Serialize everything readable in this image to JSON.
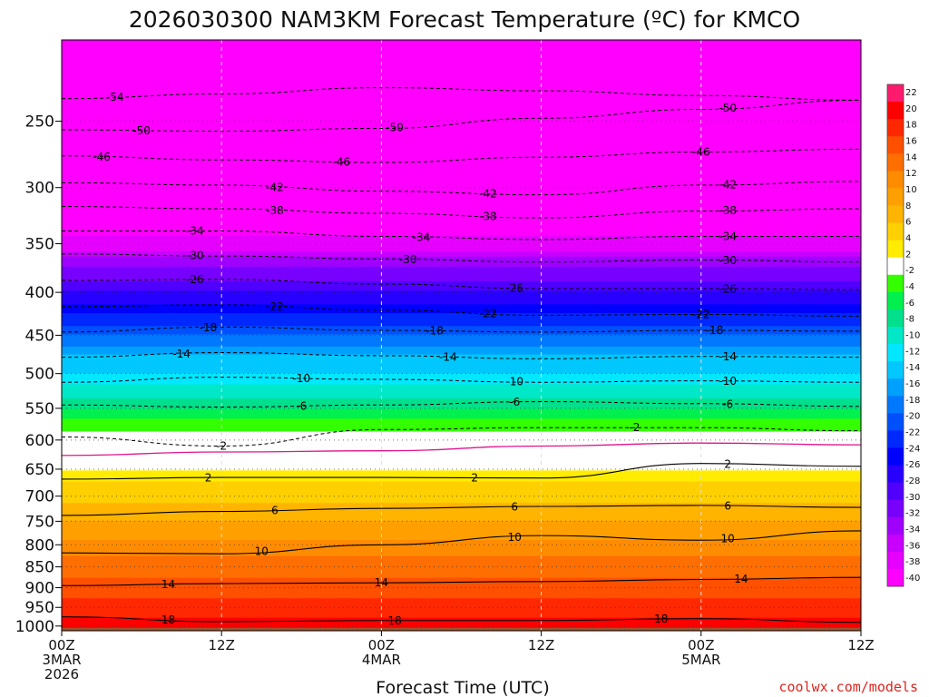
{
  "chart_data": {
    "type": "heatmap",
    "title": "2026030300 NAM3KM Forecast Temperature (ºC) for KMCO",
    "xlabel": "Forecast Time (UTC)",
    "ylabel": "",
    "x_ticks": [
      {
        "hour": 0,
        "lines": [
          "00Z",
          "3MAR",
          "2026"
        ]
      },
      {
        "hour": 12,
        "lines": [
          "12Z"
        ]
      },
      {
        "hour": 24,
        "lines": [
          "00Z",
          "4MAR"
        ]
      },
      {
        "hour": 36,
        "lines": [
          "12Z"
        ]
      },
      {
        "hour": 48,
        "lines": [
          "00Z",
          "5MAR"
        ]
      },
      {
        "hour": 60,
        "lines": [
          "12Z"
        ]
      }
    ],
    "xlim": [
      0,
      60
    ],
    "y_ticks": [
      250,
      300,
      350,
      400,
      450,
      500,
      550,
      600,
      650,
      700,
      750,
      800,
      850,
      900,
      950,
      1000
    ],
    "ylim_hPa": [
      200,
      1013
    ],
    "colorbar": {
      "levels": [
        22,
        20,
        18,
        16,
        14,
        12,
        10,
        8,
        6,
        4,
        2,
        -2,
        -4,
        -6,
        -8,
        -10,
        -12,
        -14,
        -16,
        -18,
        -20,
        -22,
        -24,
        -26,
        -28,
        -30,
        -32,
        -34,
        -36,
        -38,
        -40
      ],
      "colors": [
        "#ff1a6e",
        "#ff0000",
        "#ff2800",
        "#ff5000",
        "#ff6e00",
        "#ff8c00",
        "#ffa000",
        "#ffb400",
        "#ffd000",
        "#ffec00",
        "#ffffff",
        "#33ff00",
        "#00f050",
        "#00e08c",
        "#00e8c8",
        "#00e8ff",
        "#00c8ff",
        "#00a0ff",
        "#0078ff",
        "#0050ff",
        "#0028ff",
        "#0000ff",
        "#2800ff",
        "#5000ff",
        "#7800ff",
        "#a000ff",
        "#c800ff",
        "#e600ff",
        "#ff00ff"
      ]
    },
    "temperature_profile": [
      {
        "p": 200,
        "t": -56
      },
      {
        "p": 250,
        "t": -51
      },
      {
        "p": 275,
        "t": -47
      },
      {
        "p": 300,
        "t": -43
      },
      {
        "p": 325,
        "t": -39
      },
      {
        "p": 350,
        "t": -35
      },
      {
        "p": 375,
        "t": -30
      },
      {
        "p": 400,
        "t": -26
      },
      {
        "p": 425,
        "t": -22
      },
      {
        "p": 450,
        "t": -18
      },
      {
        "p": 475,
        "t": -14
      },
      {
        "p": 500,
        "t": -12
      },
      {
        "p": 525,
        "t": -9
      },
      {
        "p": 550,
        "t": -6
      },
      {
        "p": 575,
        "t": -3
      },
      {
        "p": 600,
        "t": -1
      },
      {
        "p": 625,
        "t": 1
      },
      {
        "p": 650,
        "t": 2
      },
      {
        "p": 675,
        "t": 4
      },
      {
        "p": 700,
        "t": 5
      },
      {
        "p": 725,
        "t": 7
      },
      {
        "p": 750,
        "t": 8
      },
      {
        "p": 775,
        "t": 9
      },
      {
        "p": 800,
        "t": 11
      },
      {
        "p": 825,
        "t": 12
      },
      {
        "p": 850,
        "t": 13
      },
      {
        "p": 875,
        "t": 14
      },
      {
        "p": 900,
        "t": 15
      },
      {
        "p": 925,
        "t": 16
      },
      {
        "p": 950,
        "t": 17
      },
      {
        "p": 975,
        "t": 18
      },
      {
        "p": 1000,
        "t": 19
      },
      {
        "p": 1013,
        "t": 20
      }
    ],
    "isotherms": [
      {
        "value": -54,
        "p": [
          235,
          232,
          228,
          230,
          233,
          236
        ],
        "style": "dashed",
        "labels": [
          {
            "hour": 4,
            "text": "-54"
          }
        ]
      },
      {
        "value": -50,
        "p": [
          256,
          257,
          255,
          248,
          242,
          236
        ],
        "style": "dashed",
        "labels": [
          {
            "hour": 6,
            "text": "-50"
          },
          {
            "hour": 25,
            "text": "-50"
          },
          {
            "hour": 50,
            "text": "-50"
          }
        ]
      },
      {
        "value": -46,
        "p": [
          275,
          278,
          280,
          276,
          272,
          270
        ],
        "style": "dashed",
        "labels": [
          {
            "hour": 3,
            "text": "-46"
          },
          {
            "hour": 21,
            "text": "-46"
          },
          {
            "hour": 48,
            "text": "-46"
          }
        ]
      },
      {
        "value": -42,
        "p": [
          296,
          298,
          303,
          306,
          298,
          295
        ],
        "style": "dashed",
        "labels": [
          {
            "hour": 16,
            "text": "-42"
          },
          {
            "hour": 32,
            "text": "-42"
          },
          {
            "hour": 50,
            "text": "-42"
          }
        ]
      },
      {
        "value": -38,
        "p": [
          316,
          318,
          322,
          326,
          320,
          318
        ],
        "style": "dashed",
        "labels": [
          {
            "hour": 16,
            "text": "-38"
          },
          {
            "hour": 32,
            "text": "-38"
          },
          {
            "hour": 50,
            "text": "-38"
          }
        ]
      },
      {
        "value": -34,
        "p": [
          338,
          338,
          343,
          346,
          343,
          343
        ],
        "style": "dashed",
        "labels": [
          {
            "hour": 10,
            "text": "-34"
          },
          {
            "hour": 27,
            "text": "-34"
          },
          {
            "hour": 50,
            "text": "-34"
          }
        ]
      },
      {
        "value": -30,
        "p": [
          360,
          362,
          365,
          368,
          366,
          368
        ],
        "style": "dashed",
        "labels": [
          {
            "hour": 10,
            "text": "-30"
          },
          {
            "hour": 26,
            "text": "-30"
          },
          {
            "hour": 50,
            "text": "-30"
          }
        ]
      },
      {
        "value": -26,
        "p": [
          387,
          386,
          391,
          396,
          396,
          397
        ],
        "style": "dashed",
        "labels": [
          {
            "hour": 10,
            "text": "-26"
          },
          {
            "hour": 34,
            "text": "-26"
          },
          {
            "hour": 50,
            "text": "-26"
          }
        ]
      },
      {
        "value": -22,
        "p": [
          416,
          414,
          420,
          426,
          425,
          427
        ],
        "style": "dashed",
        "labels": [
          {
            "hour": 16,
            "text": "-22"
          },
          {
            "hour": 32,
            "text": "-22"
          },
          {
            "hour": 48,
            "text": "-22"
          }
        ]
      },
      {
        "value": -18,
        "p": [
          446,
          440,
          444,
          446,
          444,
          445
        ],
        "style": "dashed",
        "labels": [
          {
            "hour": 11,
            "text": "-18"
          },
          {
            "hour": 28,
            "text": "-18"
          },
          {
            "hour": 49,
            "text": "-18"
          }
        ]
      },
      {
        "value": -14,
        "p": [
          478,
          472,
          476,
          480,
          477,
          478
        ],
        "style": "dashed",
        "labels": [
          {
            "hour": 9,
            "text": "-14"
          },
          {
            "hour": 29,
            "text": "-14"
          },
          {
            "hour": 50,
            "text": "-14"
          }
        ]
      },
      {
        "value": -10,
        "p": [
          512,
          505,
          508,
          512,
          510,
          512
        ],
        "style": "dashed",
        "labels": [
          {
            "hour": 18,
            "text": "-10"
          },
          {
            "hour": 34,
            "text": "-10"
          },
          {
            "hour": 50,
            "text": "-10"
          }
        ]
      },
      {
        "value": -6,
        "p": [
          545,
          548,
          545,
          540,
          543,
          547
        ],
        "style": "dashed",
        "labels": [
          {
            "hour": 18,
            "text": "-6"
          },
          {
            "hour": 34,
            "text": "-6"
          },
          {
            "hour": 50,
            "text": "-6"
          }
        ]
      },
      {
        "value": -2,
        "p": [
          595,
          610,
          583,
          580,
          580,
          585
        ],
        "style": "dashed",
        "labels": [
          {
            "hour": 12,
            "text": "-2"
          },
          {
            "hour": 43,
            "text": "-2"
          }
        ]
      },
      {
        "value": 0,
        "p": [
          626,
          620,
          618,
          610,
          605,
          608
        ],
        "style": "zero",
        "labels": []
      },
      {
        "value": 2,
        "p": [
          668,
          665,
          665,
          666,
          640,
          645
        ],
        "style": "solid",
        "labels": [
          {
            "hour": 11,
            "text": "2"
          },
          {
            "hour": 31,
            "text": "2"
          },
          {
            "hour": 50,
            "text": "2"
          }
        ]
      },
      {
        "value": 6,
        "p": [
          738,
          730,
          724,
          720,
          718,
          722
        ],
        "style": "solid",
        "labels": [
          {
            "hour": 16,
            "text": "6"
          },
          {
            "hour": 34,
            "text": "6"
          },
          {
            "hour": 50,
            "text": "6"
          }
        ]
      },
      {
        "value": 10,
        "p": [
          818,
          820,
          800,
          780,
          790,
          770
        ],
        "style": "solid",
        "labels": [
          {
            "hour": 15,
            "text": "10"
          },
          {
            "hour": 34,
            "text": "10"
          },
          {
            "hour": 50,
            "text": "10"
          }
        ]
      },
      {
        "value": 14,
        "p": [
          895,
          890,
          888,
          885,
          880,
          875
        ],
        "style": "solid",
        "labels": [
          {
            "hour": 8,
            "text": "14"
          },
          {
            "hour": 24,
            "text": "14"
          },
          {
            "hour": 51,
            "text": "14"
          }
        ]
      },
      {
        "value": 18,
        "p": [
          975,
          988,
          985,
          985,
          980,
          990
        ],
        "style": "solid",
        "labels": [
          {
            "hour": 8,
            "text": "18"
          },
          {
            "hour": 25,
            "text": "18"
          },
          {
            "hour": 45,
            "text": "18"
          }
        ]
      }
    ]
  },
  "credit": "coolwx.com/models"
}
